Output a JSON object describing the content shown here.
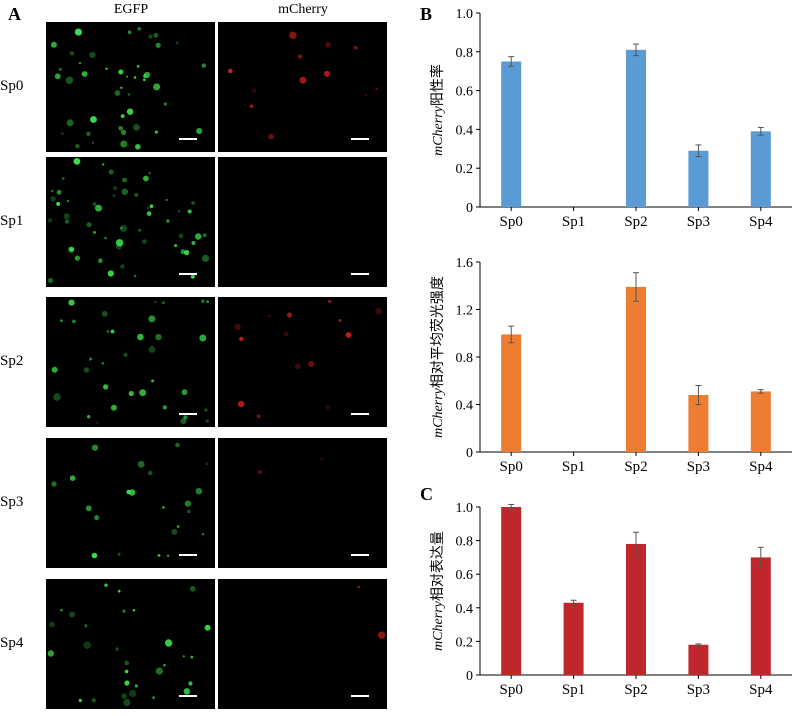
{
  "panel_a": {
    "letter": "A",
    "columns": [
      "EGFP",
      "mCherry"
    ],
    "rows": [
      "Sp0",
      "Sp1",
      "Sp2",
      "Sp3",
      "Sp4"
    ]
  },
  "colors": {
    "bar_b1": "#5b9bd5",
    "bar_b2": "#ed7d31",
    "bar_c": "#c0272d",
    "egfp": "#3ddc4a",
    "mcherry": "#c81e1e"
  },
  "chart_data": [
    {
      "panel": "B",
      "type": "bar",
      "categories": [
        "Sp0",
        "Sp1",
        "Sp2",
        "Sp3",
        "Sp4"
      ],
      "values": [
        0.75,
        0,
        0.81,
        0.29,
        0.39
      ],
      "errors": [
        0.025,
        0,
        0.03,
        0.03,
        0.02
      ],
      "ylabel_italic": "mCherry",
      "ylabel_rest": "阳性率",
      "ylim": [
        0,
        1.0
      ],
      "yticks": [
        "0",
        "0.2",
        "0.4",
        "0.6",
        "0.8",
        "1.0"
      ],
      "ytick_values": [
        0,
        0.2,
        0.4,
        0.6,
        0.8,
        1.0
      ],
      "color": "#5b9bd5"
    },
    {
      "panel": "",
      "type": "bar",
      "categories": [
        "Sp0",
        "Sp1",
        "Sp2",
        "Sp3",
        "Sp4"
      ],
      "values": [
        0.99,
        0,
        1.39,
        0.48,
        0.51
      ],
      "errors": [
        0.07,
        0,
        0.12,
        0.08,
        0.015
      ],
      "ylabel_italic": "mCherry",
      "ylabel_rest": "相对平均荧光强度",
      "ylim": [
        0,
        1.6
      ],
      "yticks": [
        "0",
        "0.4",
        "0.8",
        "1.2",
        "1.6"
      ],
      "ytick_values": [
        0,
        0.4,
        0.8,
        1.2,
        1.6
      ],
      "color": "#ed7d31"
    },
    {
      "panel": "C",
      "type": "bar",
      "categories": [
        "Sp0",
        "Sp1",
        "Sp2",
        "Sp3",
        "Sp4"
      ],
      "values": [
        1.0,
        0.43,
        0.78,
        0.18,
        0.7
      ],
      "errors": [
        0.015,
        0.015,
        0.07,
        0.005,
        0.06
      ],
      "ylabel_italic": "mCherry",
      "ylabel_rest": "相对表达量",
      "ylim": [
        0,
        1.0
      ],
      "yticks": [
        "0",
        "0.2",
        "0.4",
        "0.6",
        "0.8",
        "1.0"
      ],
      "ytick_values": [
        0,
        0.2,
        0.4,
        0.6,
        0.8,
        1.0
      ],
      "color": "#c0272d"
    }
  ]
}
